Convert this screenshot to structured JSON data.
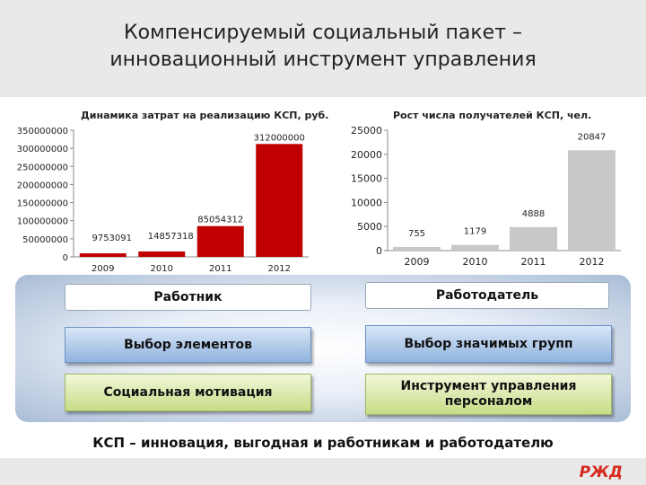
{
  "slide": {
    "title_line1": "Компенсируемый социальный пакет –",
    "title_line2": "инновационный инструмент управления",
    "bottom_text": "КСП – инновация,  выгодная и работникам и работодателю",
    "logo_text": "РЖД"
  },
  "diagram": {
    "worker": "Работник",
    "employer": "Работодатель",
    "worker_choice": "Выбор элементов",
    "employer_choice": "Выбор значимых групп",
    "worker_motivation": "Социальная мотивация",
    "employer_tool": "Инструмент управления персоналом"
  },
  "colors": {
    "bar_red": "#c00000",
    "bar_gray": "#c8c8c8",
    "box_blue": "#8fb3df",
    "box_green": "#c7dd87",
    "logo_red": "#d52b1e"
  },
  "chart_data": [
    {
      "type": "bar",
      "title": "Динамика затрат на реализацию КСП, руб.",
      "categories": [
        "2009",
        "2010",
        "2011",
        "2012"
      ],
      "values": [
        9753091,
        14857318,
        85054312,
        312000000
      ],
      "data_labels": [
        "9753091",
        "14857318",
        "85054312",
        "312000000"
      ],
      "y_ticks": [
        0,
        50000000,
        100000000,
        150000000,
        200000000,
        250000000,
        300000000,
        350000000
      ],
      "y_tick_labels": [
        "0",
        "50000000",
        "100000000",
        "150000000",
        "200000000",
        "250000000",
        "300000000",
        "350000000"
      ],
      "ylim": [
        0,
        350000000
      ],
      "grid": false,
      "color": "#c00000"
    },
    {
      "type": "bar",
      "title": "Рост числа получателей КСП, чел.",
      "categories": [
        "2009",
        "2010",
        "2011",
        "2012"
      ],
      "values": [
        755,
        1179,
        4888,
        20847
      ],
      "data_labels": [
        "755",
        "1179",
        "4888",
        "20847"
      ],
      "y_ticks": [
        0,
        5000,
        10000,
        15000,
        20000,
        25000
      ],
      "y_tick_labels": [
        "0",
        "5000",
        "10000",
        "15000",
        "20000",
        "25000"
      ],
      "ylim": [
        0,
        25000
      ],
      "grid": false,
      "color": "#c8c8c8"
    }
  ]
}
